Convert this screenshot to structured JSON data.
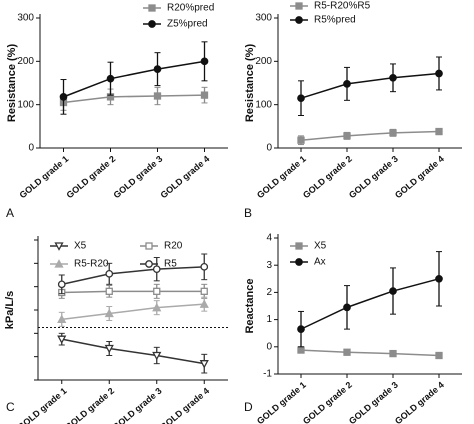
{
  "chart_data": [
    {
      "type": "line",
      "panel_label": "A",
      "y_label": "Resistance (%)",
      "categories": [
        "GOLD grade 1",
        "GOLD grade 2",
        "GOLD grade 3",
        "GOLD grade 4"
      ],
      "ylim": [
        0,
        300
      ],
      "yticks": [
        0,
        100,
        200,
        300
      ],
      "series": [
        {
          "name": "R20%pred",
          "color": "#8c8c8c",
          "marker": "square",
          "values": [
            105,
            118,
            120,
            122
          ],
          "errors": [
            18,
            18,
            20,
            18
          ]
        },
        {
          "name": "Z5%pred",
          "color": "#111111",
          "marker": "circle",
          "values": [
            118,
            160,
            182,
            200
          ],
          "errors": [
            40,
            38,
            38,
            45
          ]
        }
      ]
    },
    {
      "type": "line",
      "panel_label": "B",
      "y_label": "Resistance (%)",
      "categories": [
        "GOLD grade 1",
        "GOLD grade 2",
        "GOLD grade 3",
        "GOLD grade 4"
      ],
      "ylim": [
        0,
        300
      ],
      "yticks": [
        0,
        100,
        200,
        300
      ],
      "series": [
        {
          "name": "R5-R20%R5",
          "color": "#8c8c8c",
          "marker": "square",
          "values": [
            18,
            28,
            35,
            38
          ],
          "errors": [
            10,
            8,
            8,
            7
          ]
        },
        {
          "name": "R5%pred",
          "color": "#111111",
          "marker": "circle",
          "values": [
            115,
            148,
            162,
            172
          ],
          "errors": [
            40,
            38,
            32,
            38
          ]
        }
      ]
    },
    {
      "type": "line",
      "panel_label": "C",
      "y_label": "kPa/L/s",
      "categories": [
        "GOLD grade 1",
        "GOLD grade 2",
        "GOLD grade 3",
        "GOLD grade 4"
      ],
      "ylim": [
        -0.45,
        0.75
      ],
      "reference_line": 0,
      "series": [
        {
          "name": "X5",
          "color": "#333333",
          "marker": "triangle-down",
          "values": [
            -0.1,
            -0.18,
            -0.24,
            -0.31
          ],
          "errors": [
            0.05,
            0.06,
            0.07,
            0.08
          ]
        },
        {
          "name": "R20",
          "color": "#8c8c8c",
          "marker": "square-open",
          "values": [
            0.3,
            0.31,
            0.31,
            0.31
          ],
          "errors": [
            0.05,
            0.05,
            0.06,
            0.06
          ]
        },
        {
          "name": "R5-R20",
          "color": "#aaaaaa",
          "marker": "triangle-up",
          "values": [
            0.07,
            0.12,
            0.17,
            0.2
          ],
          "errors": [
            0.06,
            0.06,
            0.06,
            0.06
          ]
        },
        {
          "name": "R5",
          "color": "#333333",
          "marker": "circle-open",
          "values": [
            0.37,
            0.46,
            0.5,
            0.52
          ],
          "errors": [
            0.08,
            0.09,
            0.1,
            0.11
          ]
        }
      ]
    },
    {
      "type": "line",
      "panel_label": "D",
      "y_label": "Reactance",
      "categories": [
        "GOLD grade 1",
        "GOLD grade 2",
        "GOLD grade 3",
        "GOLD grade 4"
      ],
      "ylim": [
        -1,
        4
      ],
      "yticks": [
        -1,
        0,
        1,
        2,
        3,
        4
      ],
      "series": [
        {
          "name": "X5",
          "color": "#8c8c8c",
          "marker": "square",
          "values": [
            -0.12,
            -0.2,
            -0.25,
            -0.32
          ],
          "errors": [
            0.05,
            0.05,
            0.05,
            0.08
          ]
        },
        {
          "name": "Ax",
          "color": "#111111",
          "marker": "circle",
          "values": [
            0.65,
            1.45,
            2.05,
            2.5
          ],
          "errors": [
            0.65,
            0.8,
            0.85,
            1.0
          ]
        }
      ]
    }
  ]
}
